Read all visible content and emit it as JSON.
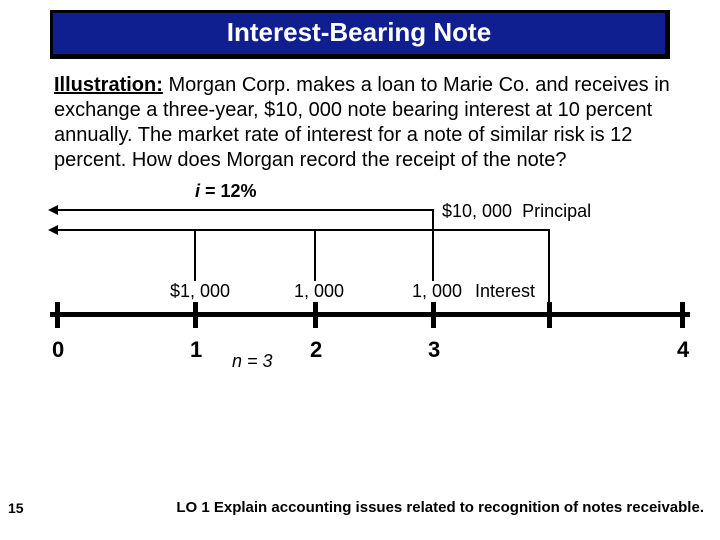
{
  "slide_number": "15",
  "title": "Interest-Bearing Note",
  "illustration_lead": "Illustration:",
  "illustration_body": "  Morgan Corp. makes a loan to Marie Co. and receives in exchange a three-year, $10, 000 note bearing interest at 10 percent annually. The market rate of interest for a note of similar risk is 12 percent.  How does Morgan record the receipt of the note?",
  "diagram": {
    "rate_prefix": "i",
    "rate_value": " = 12%",
    "principal_amount": "$10, 000",
    "principal_label": "Principal",
    "interest_amount_1": "$1, 000",
    "interest_amount_2": "1, 000",
    "interest_amount_3": "1, 000",
    "interest_label": "Interest",
    "timeline_0": "0",
    "timeline_1": "1",
    "timeline_2": "2",
    "timeline_3": "3",
    "timeline_4": "4",
    "n_prefix": "n",
    "n_value": " = 3"
  },
  "footer": "LO 1  Explain accounting issues related to recognition of notes receivable.",
  "colors": {
    "title_bg": "#0f1f8f",
    "title_text": "#ffffff",
    "border": "#000000",
    "text": "#000000"
  },
  "fontsizes": {
    "title": 26,
    "body": 20,
    "diagram_label": 18,
    "timeline_num": 22,
    "footer": 15
  }
}
